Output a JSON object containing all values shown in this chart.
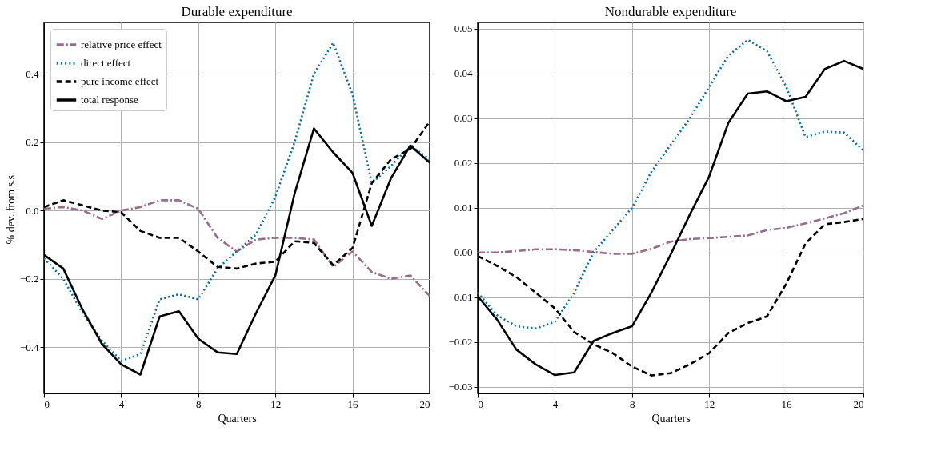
{
  "chart_data": [
    {
      "type": "line",
      "title": "Durable expenditure",
      "xlabel": "Quarters",
      "ylabel": "% dev. from s.s.",
      "x": [
        0,
        1,
        2,
        3,
        4,
        5,
        6,
        7,
        8,
        9,
        10,
        11,
        12,
        13,
        14,
        15,
        16,
        17,
        18,
        19,
        20
      ],
      "xlim": [
        0,
        20
      ],
      "xticks": [
        0,
        4,
        8,
        12,
        16,
        20
      ],
      "ylim": [
        -0.535,
        0.55
      ],
      "yticks": [
        {
          "value": -0.4,
          "label": "−0.4"
        },
        {
          "value": -0.2,
          "label": "−0.2"
        },
        {
          "value": 0,
          "label": "0.0"
        },
        {
          "value": 0.2,
          "label": "0.2"
        },
        {
          "value": 0.4,
          "label": "0.4"
        }
      ],
      "grid": true,
      "legend": "top left",
      "series": [
        {
          "name": "relative price effect",
          "color": "#9b6b8b",
          "line_style": "dashdot",
          "values": [
            0.005,
            0.01,
            0.0,
            -0.025,
            0.0,
            0.01,
            0.03,
            0.03,
            0.005,
            -0.08,
            -0.12,
            -0.085,
            -0.08,
            -0.08,
            -0.085,
            -0.165,
            -0.12,
            -0.18,
            -0.2,
            -0.19,
            -0.25
          ]
        },
        {
          "name": "direct effect",
          "color": "#0a6fa8",
          "line_style": "dotted",
          "values": [
            -0.14,
            -0.2,
            -0.3,
            -0.38,
            -0.44,
            -0.42,
            -0.26,
            -0.245,
            -0.26,
            -0.17,
            -0.12,
            -0.07,
            0.04,
            0.2,
            0.4,
            0.49,
            0.34,
            0.08,
            0.13,
            0.19,
            0.15
          ]
        },
        {
          "name": "pure income effect",
          "color": "#000000",
          "line_style": "dashed",
          "values": [
            0.01,
            0.03,
            0.015,
            0.0,
            -0.005,
            -0.06,
            -0.08,
            -0.08,
            -0.12,
            -0.165,
            -0.17,
            -0.155,
            -0.15,
            -0.09,
            -0.095,
            -0.16,
            -0.11,
            0.08,
            0.15,
            0.18,
            0.26
          ]
        },
        {
          "name": "total response",
          "color": "#000000",
          "line_style": "solid",
          "values": [
            -0.13,
            -0.17,
            -0.29,
            -0.39,
            -0.45,
            -0.48,
            -0.31,
            -0.295,
            -0.375,
            -0.415,
            -0.42,
            -0.3,
            -0.19,
            0.05,
            0.24,
            0.17,
            0.11,
            -0.045,
            0.095,
            0.19,
            0.14
          ]
        }
      ]
    },
    {
      "type": "line",
      "title": "Nondurable expenditure",
      "xlabel": "Quarters",
      "x": [
        0,
        1,
        2,
        3,
        4,
        5,
        6,
        7,
        8,
        9,
        10,
        11,
        12,
        13,
        14,
        15,
        16,
        17,
        18,
        19,
        20
      ],
      "xlim": [
        0,
        20
      ],
      "xticks": [
        0,
        4,
        8,
        12,
        16,
        20
      ],
      "ylim": [
        -0.0315,
        0.0514
      ],
      "yticks": [
        {
          "value": -0.03,
          "label": "−0.03"
        },
        {
          "value": -0.02,
          "label": "−0.02"
        },
        {
          "value": -0.01,
          "label": "−0.01"
        },
        {
          "value": 0,
          "label": "0.00"
        },
        {
          "value": 0.01,
          "label": "0.01"
        },
        {
          "value": 0.02,
          "label": "0.02"
        },
        {
          "value": 0.03,
          "label": "0.03"
        },
        {
          "value": 0.04,
          "label": "0.04"
        },
        {
          "value": 0.05,
          "label": "0.05"
        }
      ],
      "grid": true,
      "series": [
        {
          "color": "#9b6b8b",
          "line_style": "dashdot",
          "values": [
            0.0,
            0.0,
            0.0003,
            0.0007,
            0.0007,
            0.0005,
            0.0001,
            -0.0003,
            -0.0003,
            0.0008,
            0.0024,
            0.003,
            0.0032,
            0.0035,
            0.0038,
            0.005,
            0.0055,
            0.0065,
            0.0076,
            0.0088,
            0.0105
          ]
        },
        {
          "color": "#0a6fa8",
          "line_style": "dotted",
          "values": [
            -0.009,
            -0.014,
            -0.0165,
            -0.017,
            -0.0155,
            -0.009,
            0.0,
            0.005,
            0.01,
            0.018,
            0.024,
            0.03,
            0.037,
            0.044,
            0.0475,
            0.045,
            0.037,
            0.0258,
            0.027,
            0.0268,
            0.0228
          ]
        },
        {
          "color": "#000000",
          "line_style": "dashed",
          "values": [
            -0.0008,
            -0.003,
            -0.0055,
            -0.009,
            -0.0125,
            -0.0178,
            -0.0205,
            -0.0225,
            -0.0255,
            -0.0275,
            -0.027,
            -0.025,
            -0.0225,
            -0.018,
            -0.0158,
            -0.0143,
            -0.007,
            0.002,
            0.0063,
            0.0068,
            0.0075
          ]
        },
        {
          "color": "#000000",
          "line_style": "solid",
          "values": [
            -0.0098,
            -0.015,
            -0.0217,
            -0.025,
            -0.0274,
            -0.0268,
            -0.0198,
            -0.018,
            -0.0165,
            -0.009,
            -0.0005,
            0.0085,
            0.017,
            0.029,
            0.0355,
            0.036,
            0.0338,
            0.0348,
            0.041,
            0.0428,
            0.041
          ]
        }
      ]
    }
  ]
}
